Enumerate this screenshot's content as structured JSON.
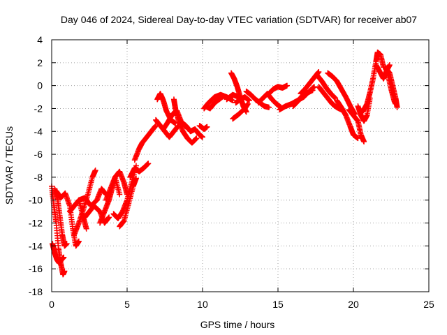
{
  "chart_data": {
    "type": "scatter",
    "title": "Day 046 of 2024, Sidereal Day-to-day VTEC variation (SDTVAR) for receiver ab07",
    "xlabel": "GPS time / hours",
    "ylabel": "SDTVAR / TECUs",
    "xlim": [
      0,
      25
    ],
    "ylim": [
      -18,
      4
    ],
    "xticks": [
      0,
      5,
      10,
      15,
      20,
      25
    ],
    "yticks": [
      4,
      2,
      0,
      -2,
      -4,
      -6,
      -8,
      -10,
      -12,
      -14,
      -16,
      -18
    ],
    "grid": true,
    "marker": "+",
    "series": [
      {
        "name": "SDTVAR",
        "color": "#ff0000",
        "strands": [
          [
            [
              0.0,
              -8.8
            ],
            [
              0.15,
              -10.5
            ],
            [
              0.3,
              -12.0
            ],
            [
              0.45,
              -14.2
            ],
            [
              0.6,
              -15.5
            ],
            [
              0.75,
              -16.5
            ],
            [
              0.85,
              -16.2
            ]
          ],
          [
            [
              0.05,
              -13.8
            ],
            [
              0.2,
              -14.6
            ],
            [
              0.35,
              -15.2
            ],
            [
              0.5,
              -15.5
            ],
            [
              0.65,
              -15.2
            ],
            [
              0.8,
              -15.0
            ]
          ],
          [
            [
              0.2,
              -9.0
            ],
            [
              0.4,
              -10.0
            ],
            [
              0.55,
              -11.5
            ],
            [
              0.7,
              -13.0
            ],
            [
              0.85,
              -14.0
            ],
            [
              1.0,
              -13.8
            ]
          ],
          [
            [
              0.3,
              -9.2
            ],
            [
              0.6,
              -9.8
            ],
            [
              0.9,
              -9.4
            ],
            [
              1.2,
              -10.5
            ],
            [
              1.4,
              -12.5
            ],
            [
              1.6,
              -14.0
            ],
            [
              1.8,
              -13.6
            ]
          ],
          [
            [
              1.2,
              -11.0
            ],
            [
              1.5,
              -10.5
            ],
            [
              1.8,
              -10.0
            ],
            [
              2.1,
              -11.5
            ],
            [
              2.3,
              -12.5
            ]
          ],
          [
            [
              1.5,
              -13.0
            ],
            [
              1.8,
              -12.0
            ],
            [
              2.1,
              -10.8
            ],
            [
              2.4,
              -9.5
            ],
            [
              2.7,
              -8.0
            ],
            [
              2.9,
              -7.4
            ]
          ],
          [
            [
              1.8,
              -10.0
            ],
            [
              2.2,
              -9.8
            ],
            [
              2.6,
              -10.5
            ],
            [
              3.0,
              -10.0
            ],
            [
              3.3,
              -9.0
            ],
            [
              3.6,
              -9.5
            ]
          ],
          [
            [
              2.2,
              -11.5
            ],
            [
              2.5,
              -11.0
            ],
            [
              2.8,
              -10.5
            ],
            [
              3.2,
              -11.0
            ],
            [
              3.5,
              -12.0
            ],
            [
              3.8,
              -11.5
            ]
          ],
          [
            [
              3.2,
              -12.0
            ],
            [
              3.5,
              -11.0
            ],
            [
              3.8,
              -10.0
            ],
            [
              4.0,
              -9.0
            ],
            [
              4.2,
              -8.0
            ],
            [
              4.5,
              -9.5
            ]
          ],
          [
            [
              3.6,
              -10.0
            ],
            [
              3.9,
              -9.0
            ],
            [
              4.2,
              -8.0
            ],
            [
              4.5,
              -7.5
            ],
            [
              4.8,
              -8.5
            ],
            [
              5.0,
              -9.5
            ]
          ],
          [
            [
              4.1,
              -11.2
            ],
            [
              4.4,
              -11.6
            ],
            [
              4.7,
              -11.0
            ],
            [
              5.0,
              -10.0
            ],
            [
              5.3,
              -8.5
            ],
            [
              5.6,
              -7.0
            ]
          ],
          [
            [
              4.5,
              -12.3
            ],
            [
              4.8,
              -11.8
            ],
            [
              5.1,
              -10.3
            ],
            [
              5.4,
              -8.8
            ],
            [
              5.6,
              -8.1
            ]
          ],
          [
            [
              5.2,
              -8.0
            ],
            [
              5.5,
              -7.2
            ],
            [
              5.8,
              -7.5
            ],
            [
              6.1,
              -7.2
            ],
            [
              6.4,
              -6.8
            ]
          ],
          [
            [
              5.5,
              -6.5
            ],
            [
              5.8,
              -5.5
            ],
            [
              6.0,
              -5.0
            ],
            [
              6.3,
              -4.5
            ],
            [
              6.6,
              -4.0
            ],
            [
              6.9,
              -3.5
            ]
          ],
          [
            [
              6.9,
              -3.0
            ],
            [
              7.2,
              -3.5
            ],
            [
              7.5,
              -4.0
            ],
            [
              7.8,
              -4.5
            ],
            [
              8.1,
              -4.0
            ],
            [
              8.4,
              -3.5
            ]
          ],
          [
            [
              7.0,
              -1.2
            ],
            [
              7.2,
              -0.7
            ],
            [
              7.4,
              -1.3
            ],
            [
              7.6,
              -2.2
            ],
            [
              7.9,
              -3.0
            ],
            [
              8.2,
              -3.3
            ]
          ],
          [
            [
              7.4,
              -3.8
            ],
            [
              7.7,
              -3.2
            ],
            [
              8.0,
              -2.5
            ],
            [
              8.3,
              -2.2
            ],
            [
              8.6,
              -3.2
            ],
            [
              8.9,
              -3.6
            ]
          ],
          [
            [
              8.1,
              -1.2
            ],
            [
              8.2,
              -2.0
            ],
            [
              8.4,
              -3.0
            ],
            [
              8.7,
              -4.0
            ],
            [
              9.0,
              -4.6
            ],
            [
              9.3,
              -5.0
            ],
            [
              9.6,
              -4.6
            ]
          ],
          [
            [
              8.6,
              -3.2
            ],
            [
              8.9,
              -3.5
            ],
            [
              9.2,
              -4.0
            ],
            [
              9.5,
              -3.8
            ],
            [
              9.8,
              -4.3
            ],
            [
              10.0,
              -4.5
            ]
          ],
          [
            [
              9.8,
              -3.5
            ],
            [
              10.1,
              -3.8
            ],
            [
              10.3,
              -3.6
            ]
          ],
          [
            [
              10.1,
              -2.0
            ],
            [
              10.4,
              -1.5
            ],
            [
              10.8,
              -1.0
            ],
            [
              11.2,
              -0.8
            ],
            [
              11.6,
              -1.0
            ],
            [
              12.0,
              -1.3
            ]
          ],
          [
            [
              10.2,
              -1.8
            ],
            [
              10.5,
              -2.0
            ],
            [
              10.8,
              -1.5
            ],
            [
              11.1,
              -1.2
            ],
            [
              11.4,
              -0.9
            ]
          ],
          [
            [
              11.6,
              -1.2
            ],
            [
              12.0,
              -0.8
            ],
            [
              12.4,
              -1.0
            ]
          ],
          [
            [
              11.9,
              1.1
            ],
            [
              12.1,
              0.6
            ],
            [
              12.3,
              -0.1
            ],
            [
              12.5,
              -1.0
            ],
            [
              12.7,
              -1.8
            ],
            [
              12.9,
              -2.3
            ]
          ],
          [
            [
              12.2,
              -1.5
            ],
            [
              12.5,
              -1.2
            ],
            [
              12.8,
              -1.0
            ],
            [
              13.1,
              -1.3
            ]
          ],
          [
            [
              12.0,
              -2.9
            ],
            [
              12.4,
              -2.5
            ],
            [
              12.8,
              -2.0
            ],
            [
              13.0,
              -1.6
            ]
          ],
          [
            [
              12.9,
              -0.5
            ],
            [
              13.2,
              -0.8
            ],
            [
              13.5,
              -1.2
            ],
            [
              13.8,
              -1.5
            ],
            [
              14.1,
              -1.8
            ],
            [
              14.4,
              -1.9
            ]
          ],
          [
            [
              13.7,
              -1.5
            ],
            [
              14.0,
              -1.1
            ],
            [
              14.3,
              -0.7
            ],
            [
              14.6,
              -1.2
            ],
            [
              14.9,
              -1.6
            ],
            [
              15.2,
              -1.9
            ]
          ],
          [
            [
              14.4,
              -0.7
            ],
            [
              14.7,
              -0.3
            ],
            [
              15.0,
              -0.1
            ],
            [
              15.3,
              -0.2
            ],
            [
              15.6,
              0.0
            ]
          ],
          [
            [
              15.1,
              -2.1
            ],
            [
              15.5,
              -1.8
            ],
            [
              15.9,
              -1.6
            ],
            [
              16.3,
              -1.3
            ],
            [
              16.7,
              -1.0
            ],
            [
              17.0,
              -0.6
            ],
            [
              17.4,
              -0.1
            ]
          ],
          [
            [
              16.0,
              -1.8
            ],
            [
              16.3,
              -1.4
            ],
            [
              16.6,
              -0.9
            ],
            [
              17.0,
              -0.6
            ],
            [
              17.3,
              -0.4
            ]
          ],
          [
            [
              16.5,
              -0.7
            ],
            [
              16.8,
              -0.3
            ],
            [
              17.1,
              0.2
            ],
            [
              17.4,
              0.7
            ],
            [
              17.7,
              1.2
            ]
          ],
          [
            [
              17.6,
              0.9
            ],
            [
              17.9,
              0.4
            ],
            [
              18.2,
              -0.2
            ],
            [
              18.5,
              -0.7
            ],
            [
              18.8,
              -1.1
            ]
          ],
          [
            [
              17.7,
              -0.1
            ],
            [
              18.0,
              -0.6
            ],
            [
              18.3,
              -1.1
            ],
            [
              18.6,
              -1.6
            ],
            [
              18.9,
              -1.9
            ],
            [
              19.2,
              -2.1
            ]
          ],
          [
            [
              18.3,
              1.1
            ],
            [
              18.6,
              0.8
            ],
            [
              18.9,
              0.4
            ],
            [
              19.2,
              -0.3
            ],
            [
              19.5,
              -1.0
            ],
            [
              19.8,
              -1.8
            ],
            [
              20.1,
              -2.5
            ]
          ],
          [
            [
              18.9,
              -1.3
            ],
            [
              19.2,
              -1.9
            ],
            [
              19.5,
              -2.6
            ],
            [
              19.8,
              -3.6
            ],
            [
              20.0,
              -4.3
            ],
            [
              20.3,
              -4.6
            ]
          ],
          [
            [
              19.7,
              -2.1
            ],
            [
              20.0,
              -2.6
            ],
            [
              20.3,
              -3.1
            ],
            [
              20.5,
              -4.3
            ],
            [
              20.7,
              -4.9
            ]
          ],
          [
            [
              20.3,
              -1.8
            ],
            [
              20.5,
              -2.6
            ],
            [
              20.7,
              -3.1
            ],
            [
              20.9,
              -2.6
            ],
            [
              21.1,
              -1.1
            ]
          ],
          [
            [
              20.6,
              -2.3
            ],
            [
              20.9,
              -1.6
            ],
            [
              21.1,
              -0.6
            ],
            [
              21.3,
              0.6
            ],
            [
              21.5,
              2.1
            ],
            [
              21.6,
              2.9
            ],
            [
              21.8,
              2.7
            ],
            [
              22.0,
              1.6
            ]
          ],
          [
            [
              21.5,
              1.8
            ],
            [
              21.8,
              1.1
            ],
            [
              22.0,
              0.6
            ],
            [
              22.2,
              1.3
            ],
            [
              22.4,
              1.8
            ]
          ],
          [
            [
              22.1,
              1.6
            ],
            [
              22.4,
              1.1
            ],
            [
              22.6,
              0.0
            ],
            [
              22.8,
              -1.1
            ],
            [
              22.9,
              -1.9
            ]
          ],
          [
            [
              22.3,
              0.9
            ],
            [
              22.5,
              -0.3
            ],
            [
              22.7,
              -1.3
            ],
            [
              22.8,
              -1.6
            ]
          ]
        ]
      }
    ]
  }
}
